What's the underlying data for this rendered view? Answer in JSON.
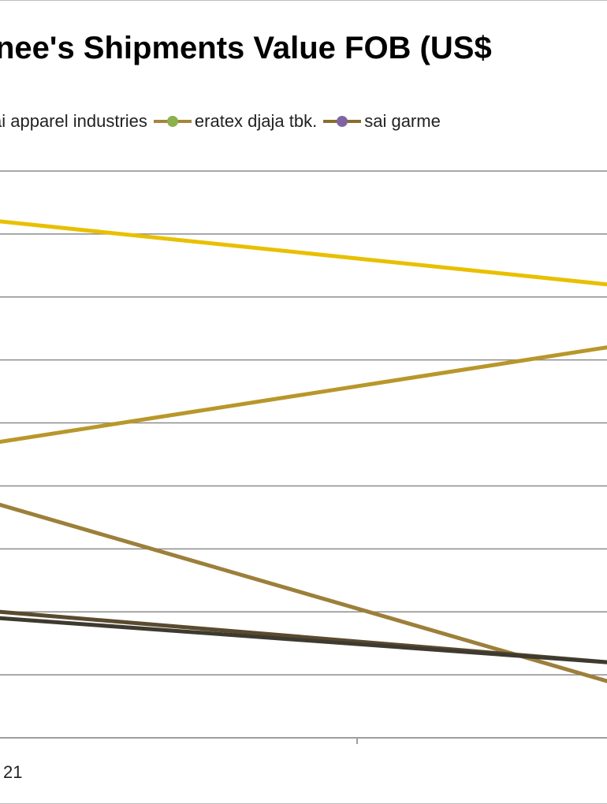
{
  "chart_data": {
    "type": "line",
    "title": "nee's Shipments Value FOB (US$",
    "x": [
      "21",
      ""
    ],
    "ylim": [
      0,
      9
    ],
    "grid": true,
    "legend_position": "top",
    "series": [
      {
        "name": "",
        "color": "#E8C000",
        "values": [
          8.2,
          7.2
        ]
      },
      {
        "name": "",
        "color": "#B8972A",
        "values": [
          4.7,
          6.2
        ]
      },
      {
        "name": "",
        "color": "#9C7F3A",
        "values": [
          3.7,
          0.9
        ]
      },
      {
        "name": "",
        "color": "#5A4A2E",
        "values": [
          2.0,
          1.2
        ]
      },
      {
        "name": "",
        "color": "#3E3A30",
        "values": [
          1.9,
          1.2
        ]
      }
    ],
    "legend": [
      {
        "label": "ai apparel industries",
        "line_color": "#A5853A",
        "marker_color": "#8BB04C"
      },
      {
        "label": "eratex djaja tbk.",
        "line_color": "#8A6D2C",
        "marker_color": "#8064A2"
      },
      {
        "label": "sai garme",
        "line_color": "#5A4A2E",
        "marker_color": ""
      }
    ]
  }
}
